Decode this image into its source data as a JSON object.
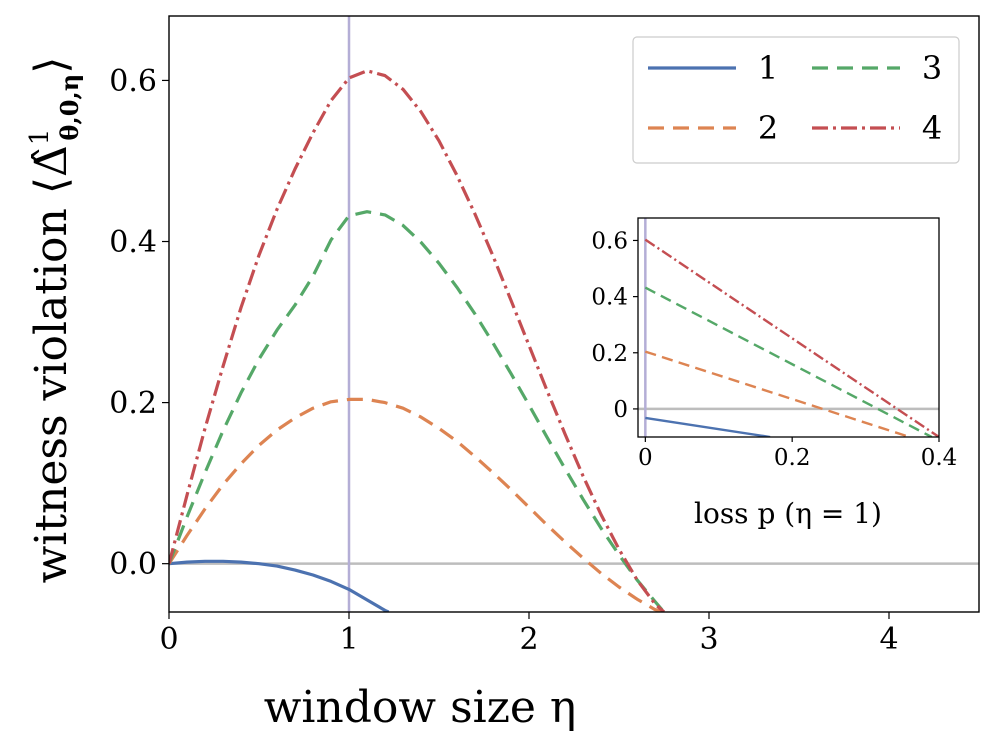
{
  "chart_data": [
    {
      "type": "line",
      "name": "main",
      "xlabel": "window size η",
      "ylabel_parts": {
        "prefix": "witness violation ⟨",
        "symbol": "Δ̂",
        "sup": "1",
        "sub": "θ,0,η",
        "suffix": "⟩"
      },
      "xlim": [
        0,
        4.5
      ],
      "ylim": [
        -0.06,
        0.68
      ],
      "xticks": [
        0,
        1,
        2,
        3,
        4
      ],
      "xtick_labels": [
        "0",
        "1",
        "2",
        "3",
        "4"
      ],
      "yticks": [
        0.0,
        0.2,
        0.4,
        0.6
      ],
      "ytick_labels": [
        "0.0",
        "0.2",
        "0.4",
        "0.6"
      ],
      "hline": 0,
      "vline": 1,
      "legend": {
        "placement": "top-right",
        "entries": [
          "1",
          "2",
          "3",
          "4"
        ]
      },
      "series": [
        {
          "name": "1",
          "style": "solid",
          "color": "#4c72b0",
          "x": [
            0,
            0.1,
            0.2,
            0.3,
            0.4,
            0.5,
            0.6,
            0.7,
            0.8,
            0.9,
            1.0,
            1.1,
            1.2,
            1.22
          ],
          "y": [
            0,
            0.002,
            0.003,
            0.003,
            0.002,
            0.0,
            -0.003,
            -0.008,
            -0.014,
            -0.022,
            -0.032,
            -0.045,
            -0.058,
            -0.06
          ]
        },
        {
          "name": "2",
          "style": "dashed",
          "color": "#dd8452",
          "x": [
            0,
            0.1,
            0.2,
            0.3,
            0.4,
            0.5,
            0.6,
            0.7,
            0.8,
            0.9,
            1.0,
            1.1,
            1.2,
            1.3,
            1.4,
            1.5,
            1.6,
            1.7,
            1.8,
            1.9,
            2.0,
            2.1,
            2.2,
            2.3,
            2.4,
            2.5,
            2.6,
            2.7,
            2.75
          ],
          "y": [
            0,
            0.035,
            0.068,
            0.098,
            0.124,
            0.147,
            0.166,
            0.181,
            0.193,
            0.201,
            0.204,
            0.204,
            0.2,
            0.193,
            0.182,
            0.168,
            0.152,
            0.133,
            0.113,
            0.092,
            0.07,
            0.048,
            0.027,
            0.007,
            -0.012,
            -0.029,
            -0.044,
            -0.057,
            -0.06
          ]
        },
        {
          "name": "3",
          "style": "dashed",
          "color": "#55a868",
          "x": [
            0,
            0.1,
            0.2,
            0.3,
            0.4,
            0.5,
            0.6,
            0.7,
            0.8,
            0.9,
            1.0,
            1.1,
            1.2,
            1.3,
            1.4,
            1.5,
            1.6,
            1.7,
            1.8,
            1.9,
            2.0,
            2.1,
            2.2,
            2.3,
            2.4,
            2.5,
            2.6,
            2.7,
            2.75
          ],
          "y": [
            0,
            0.058,
            0.113,
            0.165,
            0.212,
            0.254,
            0.29,
            0.321,
            0.357,
            0.402,
            0.432,
            0.437,
            0.433,
            0.42,
            0.399,
            0.373,
            0.343,
            0.31,
            0.274,
            0.236,
            0.197,
            0.157,
            0.118,
            0.08,
            0.044,
            0.011,
            -0.02,
            -0.047,
            -0.06
          ]
        },
        {
          "name": "4",
          "style": "dashdot",
          "color": "#c44e52",
          "x": [
            0,
            0.1,
            0.2,
            0.3,
            0.4,
            0.5,
            0.6,
            0.7,
            0.8,
            0.9,
            1.0,
            1.1,
            1.2,
            1.3,
            1.4,
            1.5,
            1.6,
            1.7,
            1.8,
            1.9,
            2.0,
            2.1,
            2.2,
            2.3,
            2.4,
            2.5,
            2.6,
            2.7,
            2.75
          ],
          "y": [
            0,
            0.085,
            0.168,
            0.245,
            0.318,
            0.383,
            0.44,
            0.49,
            0.535,
            0.575,
            0.603,
            0.612,
            0.606,
            0.589,
            0.561,
            0.525,
            0.482,
            0.434,
            0.382,
            0.327,
            0.271,
            0.215,
            0.161,
            0.109,
            0.061,
            0.018,
            -0.02,
            -0.05,
            -0.06
          ]
        }
      ]
    },
    {
      "type": "line",
      "name": "inset",
      "xlabel": "loss p (η = 1)",
      "xlim": [
        -0.01,
        0.4
      ],
      "ylim": [
        -0.1,
        0.68
      ],
      "xticks": [
        0,
        0.2,
        0.4
      ],
      "xtick_labels": [
        "0",
        "0.2",
        "0.4"
      ],
      "yticks": [
        0,
        0.2,
        0.4,
        0.6
      ],
      "ytick_labels": [
        "0",
        "0.2",
        "0.4",
        "0.6"
      ],
      "hline": 0,
      "vline": 0,
      "series": [
        {
          "name": "1",
          "style": "solid",
          "color": "#4c72b0",
          "x": [
            0,
            0.17
          ],
          "y": [
            -0.032,
            -0.1
          ]
        },
        {
          "name": "2",
          "style": "dashed",
          "color": "#dd8452",
          "x": [
            0,
            0.36
          ],
          "y": [
            0.204,
            -0.1
          ]
        },
        {
          "name": "3",
          "style": "dashed",
          "color": "#55a868",
          "x": [
            0,
            0.39
          ],
          "y": [
            0.432,
            -0.1
          ]
        },
        {
          "name": "4",
          "style": "dashdot",
          "color": "#c44e52",
          "x": [
            0,
            0.4
          ],
          "y": [
            0.603,
            -0.1
          ]
        }
      ]
    }
  ]
}
